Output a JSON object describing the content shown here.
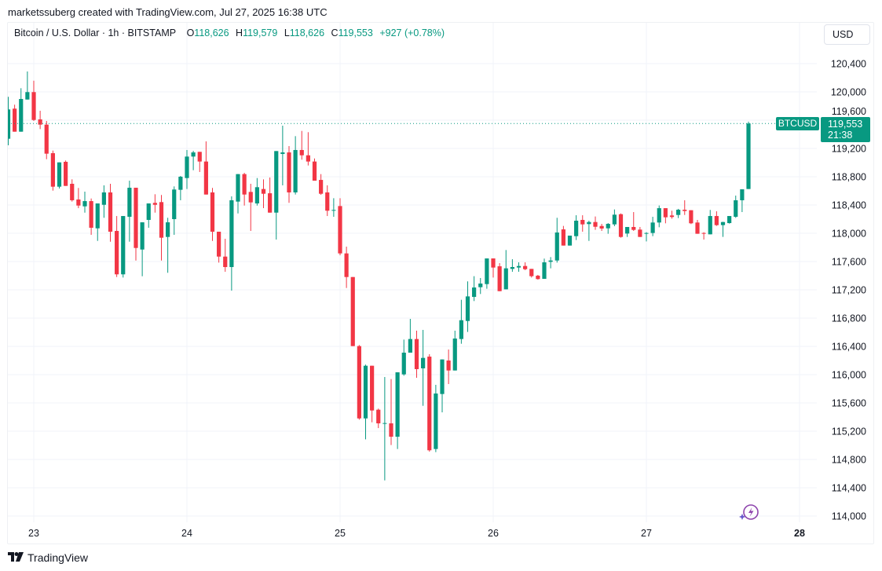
{
  "credit": "marketssuberg created with TradingView.com, Jul 27, 2025 16:38 UTC",
  "legend": {
    "symbol": "Bitcoin / U.S. Dollar · 1h · BITSTAMP",
    "o_label": "O",
    "o": "118,626",
    "h_label": "H",
    "h": "119,579",
    "l_label": "L",
    "l": "118,626",
    "c_label": "C",
    "c": "119,553",
    "change": "+927 (+0.78%)"
  },
  "currency_button": "USD",
  "symbol_label": "BTCUSD",
  "price_label": {
    "price": "119,553",
    "countdown": "21:38"
  },
  "logo_text": "TradingView",
  "icons": {
    "logo": "tradingview-logo-icon",
    "assistant": "lightning-sparkle-icon"
  },
  "colors": {
    "up": "#089981",
    "down": "#f23645",
    "assistant": "#7b3fc4"
  },
  "chart_data": {
    "type": "candlestick",
    "title": "",
    "interval": "1h",
    "start": "2025-07-22 20:00",
    "x_ticks": [
      {
        "label": "23",
        "hour": 0
      },
      {
        "label": "24",
        "hour": 24
      },
      {
        "label": "25",
        "hour": 48
      },
      {
        "label": "26",
        "hour": 72
      },
      {
        "label": "27",
        "hour": 96
      },
      {
        "label": "28",
        "hour": 120,
        "bold": true
      }
    ],
    "y_ticks": [
      114000,
      114400,
      114800,
      115200,
      115600,
      116000,
      116400,
      116800,
      117200,
      117600,
      118000,
      118400,
      118800,
      119200,
      119600,
      120000,
      120400
    ],
    "y_tick_labels": [
      "114,000",
      "114,400",
      "114,800",
      "115,200",
      "115,600",
      "116,000",
      "116,400",
      "116,800",
      "117,200",
      "117,600",
      "118,000",
      "118,400",
      "118,800",
      "119,200",
      "119,600",
      "120,000",
      "120,400"
    ],
    "ylim": [
      113900,
      120800
    ],
    "last_price": 119553,
    "grid": true,
    "ohlc_columns": [
      "open",
      "high",
      "low",
      "close"
    ],
    "ohlc": [
      [
        119337,
        119930,
        119244,
        119752
      ],
      [
        119763,
        119819,
        119437,
        119437
      ],
      [
        119437,
        120052,
        119437,
        119900
      ],
      [
        119892,
        120289,
        119892,
        119997
      ],
      [
        119997,
        120159,
        119589,
        119603
      ],
      [
        119611,
        119733,
        119474,
        119537
      ],
      [
        119537,
        119589,
        119048,
        119126
      ],
      [
        119133,
        119170,
        118603,
        118659
      ],
      [
        118659,
        119003,
        118633,
        119003
      ],
      [
        119011,
        119030,
        118670,
        118670
      ],
      [
        118700,
        118763,
        118448,
        118467
      ],
      [
        118478,
        118641,
        118355,
        118392
      ],
      [
        118381,
        118589,
        118292,
        118455
      ],
      [
        118455,
        118492,
        117978,
        118078
      ],
      [
        118070,
        118422,
        117892,
        118422
      ],
      [
        118403,
        118678,
        118219,
        118578
      ],
      [
        118578,
        118700,
        117881,
        118022
      ],
      [
        118033,
        118244,
        117381,
        117419
      ],
      [
        117419,
        118244,
        117374,
        118244
      ],
      [
        118233,
        118744,
        117881,
        118644
      ],
      [
        118644,
        118644,
        117614,
        117792
      ],
      [
        117770,
        118155,
        117392,
        118155
      ],
      [
        118189,
        118422,
        118078,
        118422
      ],
      [
        118430,
        118552,
        118292,
        118403
      ],
      [
        118441,
        118541,
        117614,
        117937
      ],
      [
        117948,
        118219,
        117441,
        118155
      ],
      [
        118200,
        118663,
        117978,
        118619
      ],
      [
        118615,
        118811,
        118467,
        118800
      ],
      [
        118781,
        119178,
        118626,
        119085
      ],
      [
        119085,
        119166,
        118892,
        119144
      ],
      [
        119152,
        119152,
        118867,
        119015
      ],
      [
        119015,
        119300,
        118548,
        118548
      ],
      [
        118578,
        118641,
        117892,
        118022
      ],
      [
        118022,
        118022,
        117585,
        117670
      ],
      [
        117670,
        117922,
        117455,
        117522
      ],
      [
        117522,
        118522,
        117189,
        118467
      ],
      [
        118448,
        118837,
        118281,
        118837
      ],
      [
        118837,
        118855,
        118392,
        118548
      ],
      [
        118585,
        118700,
        118033,
        118437
      ],
      [
        118422,
        118781,
        118392,
        118652
      ],
      [
        118626,
        118763,
        118355,
        118559
      ],
      [
        118566,
        118789,
        118292,
        118292
      ],
      [
        118292,
        119163,
        117911,
        119163
      ],
      [
        119122,
        119522,
        118678,
        119144
      ],
      [
        119144,
        119233,
        118430,
        118578
      ],
      [
        118578,
        119374,
        118548,
        119178
      ],
      [
        119178,
        119448,
        119041,
        119103
      ],
      [
        119103,
        119430,
        118959,
        119015
      ],
      [
        119015,
        119059,
        118744,
        118744
      ],
      [
        118755,
        118837,
        118544,
        118559
      ],
      [
        118578,
        118678,
        118244,
        118319
      ],
      [
        118330,
        118496,
        118233,
        118330
      ],
      [
        118385,
        118496,
        117689,
        117715
      ],
      [
        117715,
        117811,
        117226,
        117381
      ],
      [
        117381,
        117381,
        116404,
        116404
      ],
      [
        116404,
        116419,
        115363,
        115381
      ],
      [
        115381,
        116141,
        115085,
        116126
      ],
      [
        116126,
        116126,
        115326,
        115493
      ],
      [
        115504,
        115520,
        115244,
        115311
      ],
      [
        115315,
        115967,
        114504,
        115315
      ],
      [
        115311,
        115937,
        115004,
        115122
      ],
      [
        115122,
        116033,
        114948,
        116033
      ],
      [
        116004,
        116496,
        115985,
        116311
      ],
      [
        116311,
        116789,
        116311,
        116504
      ],
      [
        116504,
        116622,
        115956,
        116078
      ],
      [
        116089,
        116633,
        115559,
        116237
      ],
      [
        116255,
        116289,
        114911,
        114930
      ],
      [
        114948,
        115856,
        114904,
        115733
      ],
      [
        115726,
        116215,
        115467,
        116215
      ],
      [
        116200,
        116356,
        115867,
        116059
      ],
      [
        116059,
        116622,
        116059,
        116511
      ],
      [
        116504,
        117059,
        116437,
        116770
      ],
      [
        116759,
        117319,
        116604,
        117107
      ],
      [
        117100,
        117393,
        117041,
        117233
      ],
      [
        117237,
        117367,
        117141,
        117289
      ],
      [
        117281,
        117644,
        117215,
        117644
      ],
      [
        117644,
        117644,
        117374,
        117515
      ],
      [
        117533,
        117578,
        117181,
        117181
      ],
      [
        117207,
        117763,
        117207,
        117504
      ],
      [
        117496,
        117633,
        117455,
        117522
      ],
      [
        117515,
        117589,
        117455,
        117537
      ],
      [
        117537,
        117589,
        117478,
        117492
      ],
      [
        117496,
        117496,
        117374,
        117393
      ],
      [
        117400,
        117411,
        117344,
        117352
      ],
      [
        117355,
        117641,
        117355,
        117589
      ],
      [
        117596,
        117663,
        117504,
        117615
      ],
      [
        117615,
        118219,
        117585,
        118011
      ],
      [
        118055,
        118104,
        117826,
        117826
      ],
      [
        117826,
        117967,
        117826,
        117967
      ],
      [
        117959,
        118255,
        117904,
        118178
      ],
      [
        118189,
        118255,
        118022,
        118126
      ],
      [
        118130,
        118178,
        117892,
        118159
      ],
      [
        118159,
        118237,
        118048,
        118092
      ],
      [
        118103,
        118133,
        118033,
        118067
      ],
      [
        118070,
        118144,
        117993,
        118133
      ],
      [
        118126,
        118337,
        118100,
        118263
      ],
      [
        118270,
        118281,
        117937,
        117948
      ],
      [
        117996,
        118089,
        117948,
        118089
      ],
      [
        118089,
        118300,
        118033,
        118048
      ],
      [
        118052,
        118089,
        117948,
        117948
      ],
      [
        117993,
        118015,
        117885,
        118004
      ],
      [
        118004,
        118233,
        117959,
        118152
      ],
      [
        118152,
        118393,
        118085,
        118355
      ],
      [
        118355,
        118355,
        118141,
        118226
      ],
      [
        118252,
        118319,
        118207,
        118230
      ],
      [
        118259,
        118345,
        118215,
        118333
      ],
      [
        118333,
        118467,
        118259,
        118315
      ],
      [
        118326,
        118326,
        118130,
        118141
      ],
      [
        118152,
        118189,
        117993,
        117993
      ],
      [
        118004,
        118015,
        117911,
        117993
      ],
      [
        117985,
        118330,
        117985,
        118244
      ],
      [
        118244,
        118311,
        118104,
        118115
      ],
      [
        118115,
        118163,
        117948,
        118159
      ],
      [
        118144,
        118244,
        118137,
        118244
      ],
      [
        118233,
        118533,
        118218,
        118467
      ],
      [
        118467,
        118622,
        118300,
        118622
      ],
      [
        118626,
        119579,
        118626,
        119553
      ]
    ]
  }
}
